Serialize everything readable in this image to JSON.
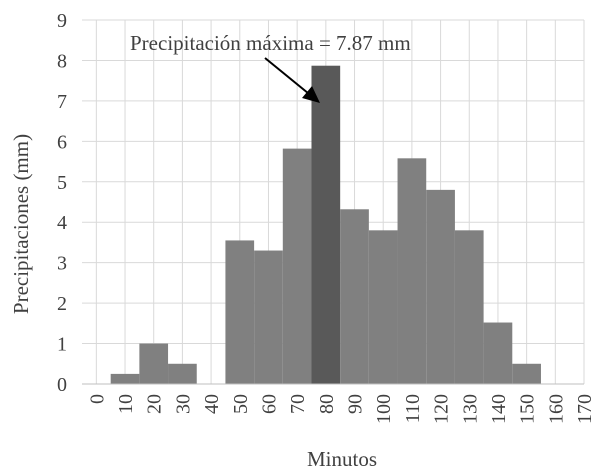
{
  "chart_data": {
    "type": "bar",
    "xlabel": "Minutos",
    "ylabel": "Precipitaciones (mm)",
    "ylim": [
      0,
      9
    ],
    "yticks": [
      "0",
      "1",
      "2",
      "3",
      "4",
      "5",
      "6",
      "7",
      "8",
      "9"
    ],
    "categories": [
      "0",
      "10",
      "20",
      "30",
      "40",
      "50",
      "60",
      "70",
      "80",
      "90",
      "100",
      "110",
      "120",
      "130",
      "140",
      "150",
      "160",
      "170"
    ],
    "values": [
      0,
      0.25,
      1.0,
      0.5,
      0,
      3.55,
      3.3,
      5.82,
      7.87,
      4.32,
      3.8,
      5.58,
      4.8,
      3.8,
      1.52,
      0.5,
      0,
      0
    ],
    "highlight_index": 8,
    "grid": true,
    "annotation": "Precipitación  máxima = 7.87 mm",
    "colors": {
      "bar": "#808080",
      "highlight": "#595959",
      "grid": "#d9d9d9",
      "axis": "#bfbfbf",
      "text": "#404040",
      "arrow": "#000000"
    }
  }
}
